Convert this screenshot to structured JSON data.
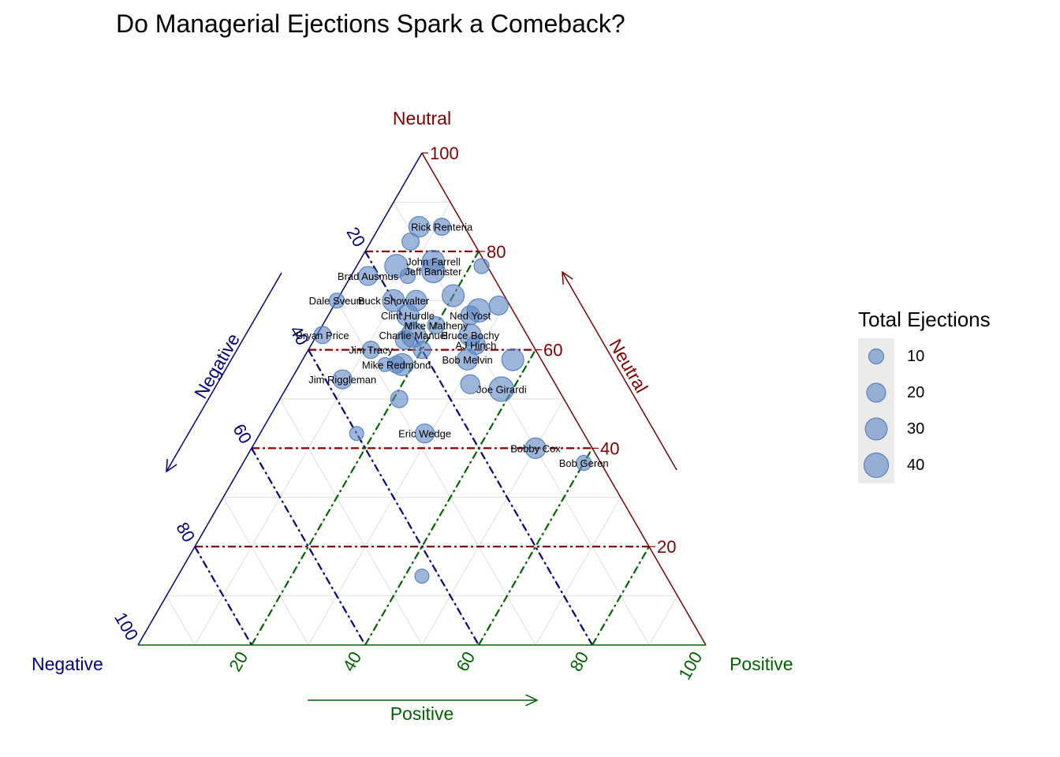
{
  "title": "Do Managerial Ejections Spark a Comeback?",
  "colors": {
    "negative": "#000080",
    "neutral": "#800000",
    "positive": "#006400",
    "points": "#5b85c2",
    "grid": "#dedede"
  },
  "legend": {
    "title": "Total Ejections",
    "items": [
      "10",
      "20",
      "30",
      "40"
    ]
  },
  "chart_data": {
    "type": "scatter",
    "subtype": "ternary",
    "title": "Do Managerial Ejections Spark a Comeback?",
    "axes": {
      "left": {
        "label": "Negative",
        "tick_labels": [
          "20",
          "40",
          "60",
          "80",
          "100"
        ]
      },
      "top": {
        "label": "Neutral",
        "tick_labels": [
          "20",
          "40",
          "60",
          "80",
          "100"
        ]
      },
      "right": {
        "label": "Positive",
        "tick_labels": [
          "20",
          "40",
          "60",
          "80",
          "100"
        ]
      }
    },
    "ticks": [
      20,
      40,
      60,
      80,
      100
    ],
    "size_legend": [
      10,
      20,
      30,
      40
    ],
    "points": [
      {
        "label": "",
        "negative": 16,
        "neutral": 77,
        "positive": 7,
        "size": 35
      },
      {
        "label": "",
        "negative": 8,
        "neutral": 85,
        "positive": 7,
        "size": 25
      },
      {
        "label": "Rick Renteria",
        "negative": 4,
        "neutral": 85,
        "positive": 11,
        "size": 15
      },
      {
        "label": "",
        "negative": 11,
        "neutral": 82,
        "positive": 7,
        "size": 15
      },
      {
        "label": "John Farrell",
        "negative": 9,
        "neutral": 78,
        "positive": 13,
        "size": 30
      },
      {
        "label": "",
        "negative": 1,
        "neutral": 77,
        "positive": 22,
        "size": 10
      },
      {
        "label": "Jeff Banister",
        "negative": 10,
        "neutral": 76,
        "positive": 14,
        "size": 35
      },
      {
        "label": "Brad Ausmus",
        "negative": 22,
        "neutral": 75,
        "positive": 3,
        "size": 20
      },
      {
        "label": "",
        "negative": 15,
        "neutral": 75,
        "positive": 10,
        "size": 10
      },
      {
        "label": "",
        "negative": 9,
        "neutral": 71,
        "positive": 20,
        "size": 30
      },
      {
        "label": "Dale Sveum",
        "negative": 30,
        "neutral": 70,
        "positive": 0,
        "size": 10
      },
      {
        "label": "Buck Showalter",
        "negative": 20,
        "neutral": 70,
        "positive": 10,
        "size": 30
      },
      {
        "label": "",
        "negative": 16,
        "neutral": 70,
        "positive": 14,
        "size": 25
      },
      {
        "label": "",
        "negative": 6,
        "neutral": 68,
        "positive": 26,
        "size": 35
      },
      {
        "label": "",
        "negative": 2,
        "neutral": 69,
        "positive": 29,
        "size": 20
      },
      {
        "label": "Clint Hurdle",
        "negative": 19,
        "neutral": 67,
        "positive": 14,
        "size": 30
      },
      {
        "label": "Ned Yost",
        "negative": 8,
        "neutral": 67,
        "positive": 25,
        "size": 20
      },
      {
        "label": "Mike Matheny",
        "negative": 15,
        "neutral": 65,
        "positive": 20,
        "size": 15
      },
      {
        "label": "Bryan Price",
        "negative": 36,
        "neutral": 63,
        "positive": 1,
        "size": 15
      },
      {
        "label": "Charlie Manuel",
        "negative": 20,
        "neutral": 63,
        "positive": 17,
        "size": 40
      },
      {
        "label": "Bruce Bochy",
        "negative": 10,
        "neutral": 63,
        "positive": 27,
        "size": 30
      },
      {
        "label": "",
        "negative": 22,
        "neutral": 62,
        "positive": 16,
        "size": 20
      },
      {
        "label": "AJ Hinch",
        "negative": 10,
        "neutral": 61,
        "positive": 29,
        "size": 20
      },
      {
        "label": "Jim Tracy",
        "negative": 29,
        "neutral": 60,
        "positive": 11,
        "size": 15
      },
      {
        "label": "",
        "negative": 20,
        "neutral": 60,
        "positive": 20,
        "size": 15
      },
      {
        "label": "",
        "negative": 5,
        "neutral": 58,
        "positive": 37,
        "size": 30
      },
      {
        "label": "Bob Melvin",
        "negative": 13,
        "neutral": 58,
        "positive": 29,
        "size": 25
      },
      {
        "label": "Mike Redmond",
        "negative": 26,
        "neutral": 57,
        "positive": 17,
        "size": 15
      },
      {
        "label": "",
        "negative": 28,
        "neutral": 57,
        "positive": 15,
        "size": 8
      },
      {
        "label": "",
        "negative": 25,
        "neutral": 57,
        "positive": 18,
        "size": 30
      },
      {
        "label": "Jim Riggleman",
        "negative": 37,
        "neutral": 54,
        "positive": 9,
        "size": 20
      },
      {
        "label": "",
        "negative": 15,
        "neutral": 53,
        "positive": 32,
        "size": 20
      },
      {
        "label": "Joe Girardi",
        "negative": 10,
        "neutral": 52,
        "positive": 38,
        "size": 40
      },
      {
        "label": "",
        "negative": 29,
        "neutral": 50,
        "positive": 21,
        "size": 15
      },
      {
        "label": "Eric Wedge",
        "negative": 28,
        "neutral": 43,
        "positive": 29,
        "size": 20
      },
      {
        "label": "",
        "negative": 40,
        "neutral": 43,
        "positive": 17,
        "size": 8
      },
      {
        "label": "Bobby Cox",
        "negative": 10,
        "neutral": 40,
        "positive": 50,
        "size": 25
      },
      {
        "label": "Bob Geren",
        "negative": 3,
        "neutral": 37,
        "positive": 60,
        "size": 10
      },
      {
        "label": "",
        "negative": 43,
        "neutral": 14,
        "positive": 43,
        "size": 8
      }
    ]
  }
}
